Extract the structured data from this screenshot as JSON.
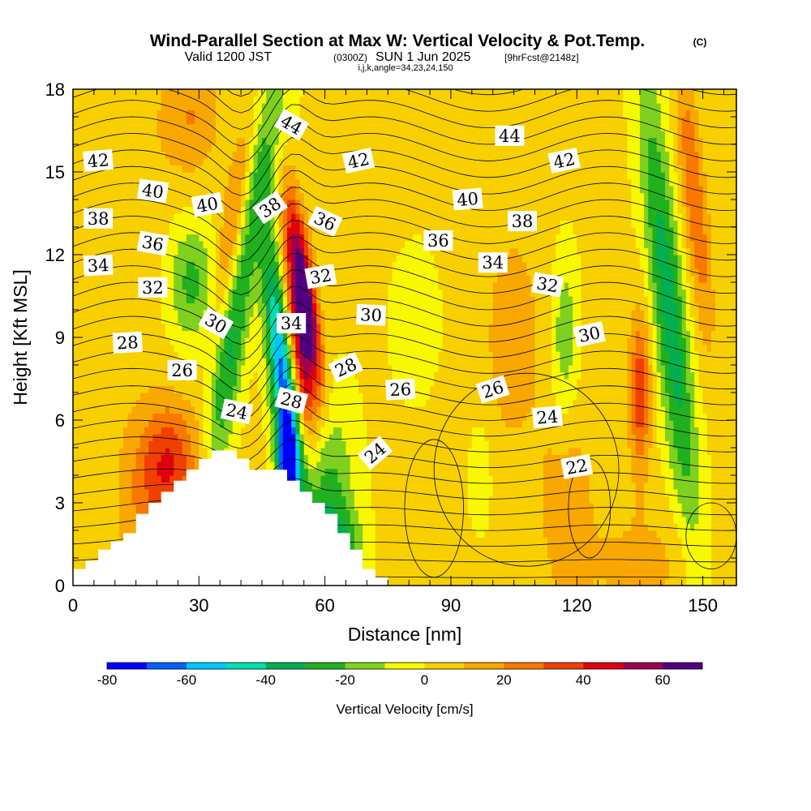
{
  "header": {
    "title": "Wind-Parallel Section at Max W: Vertical Velocity & Pot.Temp.",
    "copyright": "(C)",
    "valid_prefix": "Valid 1200 JST",
    "valid_utc": "(0300Z)",
    "valid_date": "SUN 1 Jun 2025",
    "forecast": "[9hrFcst@2148z]",
    "indices": "i,j,k,angle=34,23,24,150"
  },
  "chart_data": {
    "type": "contour",
    "xlabel": "Distance [nm]",
    "ylabel": "Height [Kft MSL]",
    "xlim": [
      0,
      158
    ],
    "ylim": [
      0,
      18
    ],
    "xticks": [
      0,
      30,
      60,
      90,
      120,
      150
    ],
    "yticks": [
      0,
      3,
      6,
      9,
      12,
      15,
      18
    ],
    "colorbar": {
      "title": "Vertical Velocity [cm/s]",
      "levels": [
        -80,
        -70,
        -60,
        -50,
        -40,
        -30,
        -20,
        -10,
        0,
        10,
        20,
        30,
        40,
        50,
        60,
        70
      ],
      "tick_values": [
        -80,
        -60,
        -40,
        -20,
        0,
        20,
        40,
        60
      ],
      "colors": [
        "#0000ff",
        "#0060ff",
        "#00c8ff",
        "#00e0b0",
        "#00b050",
        "#20b020",
        "#80d020",
        "#f8f800",
        "#f8d000",
        "#f8a800",
        "#f87800",
        "#f04000",
        "#e00010",
        "#a00050",
        "#500080"
      ]
    },
    "terrain_profile": [
      {
        "x": 0,
        "h": 0.6
      },
      {
        "x": 3,
        "h": 0.6
      },
      {
        "x": 3,
        "h": 0.9
      },
      {
        "x": 6,
        "h": 0.9
      },
      {
        "x": 6,
        "h": 1.3
      },
      {
        "x": 9,
        "h": 1.3
      },
      {
        "x": 9,
        "h": 1.6
      },
      {
        "x": 12,
        "h": 1.6
      },
      {
        "x": 12,
        "h": 1.9
      },
      {
        "x": 15,
        "h": 1.9
      },
      {
        "x": 15,
        "h": 2.6
      },
      {
        "x": 18,
        "h": 2.6
      },
      {
        "x": 18,
        "h": 3.0
      },
      {
        "x": 21,
        "h": 3.0
      },
      {
        "x": 21,
        "h": 3.4
      },
      {
        "x": 24,
        "h": 3.4
      },
      {
        "x": 24,
        "h": 3.8
      },
      {
        "x": 27,
        "h": 3.8
      },
      {
        "x": 27,
        "h": 4.2
      },
      {
        "x": 30,
        "h": 4.2
      },
      {
        "x": 30,
        "h": 4.6
      },
      {
        "x": 33,
        "h": 4.6
      },
      {
        "x": 33,
        "h": 4.9
      },
      {
        "x": 39,
        "h": 4.9
      },
      {
        "x": 39,
        "h": 4.6
      },
      {
        "x": 42,
        "h": 4.6
      },
      {
        "x": 42,
        "h": 4.2
      },
      {
        "x": 51,
        "h": 4.2
      },
      {
        "x": 51,
        "h": 3.8
      },
      {
        "x": 54,
        "h": 3.8
      },
      {
        "x": 54,
        "h": 3.4
      },
      {
        "x": 57,
        "h": 3.4
      },
      {
        "x": 57,
        "h": 3.0
      },
      {
        "x": 60,
        "h": 3.0
      },
      {
        "x": 60,
        "h": 2.6
      },
      {
        "x": 63,
        "h": 2.6
      },
      {
        "x": 63,
        "h": 1.9
      },
      {
        "x": 66,
        "h": 1.9
      },
      {
        "x": 66,
        "h": 1.3
      },
      {
        "x": 69,
        "h": 1.3
      },
      {
        "x": 69,
        "h": 0.6
      },
      {
        "x": 72,
        "h": 0.6
      },
      {
        "x": 72,
        "h": 0.3
      },
      {
        "x": 75,
        "h": 0.3
      },
      {
        "x": 75,
        "h": 0
      }
    ],
    "w_features": [
      {
        "x": 55,
        "h": 10.5,
        "sx": 2.0,
        "sy": 2.5,
        "amp": 75,
        "tilt": -0.3
      },
      {
        "x": 54,
        "h": 8.0,
        "sx": 1.8,
        "sy": 2.5,
        "amp": 40,
        "tilt": -0.3
      },
      {
        "x": 50,
        "h": 7.5,
        "sx": 2.2,
        "sy": 3.5,
        "amp": -65,
        "tilt": -0.2
      },
      {
        "x": 51,
        "h": 4.2,
        "sx": 1.5,
        "sy": 1.2,
        "amp": -70,
        "tilt": 0
      },
      {
        "x": 37,
        "h": 8.0,
        "sx": 2.5,
        "sy": 3.0,
        "amp": -30,
        "tilt": 0.3
      },
      {
        "x": 28,
        "h": 11.0,
        "sx": 4.0,
        "sy": 1.5,
        "amp": -25,
        "tilt": 0
      },
      {
        "x": 45,
        "h": 15.0,
        "sx": 3.0,
        "sy": 3.5,
        "amp": -22,
        "tilt": 0.4
      },
      {
        "x": 60,
        "h": 3.0,
        "sx": 4.5,
        "sy": 2.5,
        "amp": -32,
        "tilt": 0
      },
      {
        "x": 64,
        "h": 1.2,
        "sx": 3.5,
        "sy": 1.0,
        "amp": -25,
        "tilt": 0
      },
      {
        "x": 38,
        "h": 13.0,
        "sx": 2.0,
        "sy": 2.5,
        "amp": 25,
        "tilt": 0.3
      },
      {
        "x": 23,
        "h": 4.5,
        "sx": 5.0,
        "sy": 1.5,
        "amp": 35,
        "tilt": 0
      },
      {
        "x": 28,
        "h": 17.0,
        "sx": 5.0,
        "sy": 1.5,
        "amp": 18,
        "tilt": 0
      },
      {
        "x": 17,
        "h": 2.5,
        "sx": 5.0,
        "sy": 2.0,
        "amp": 14,
        "tilt": 0
      },
      {
        "x": 142,
        "h": 10.0,
        "sx": 2.8,
        "sy": 6.0,
        "amp": -38,
        "tilt": -0.22
      },
      {
        "x": 148,
        "h": 14.0,
        "sx": 2.0,
        "sy": 3.5,
        "amp": 28,
        "tilt": -0.2
      },
      {
        "x": 135,
        "h": 7.0,
        "sx": 1.8,
        "sy": 2.0,
        "amp": 35,
        "tilt": 0
      },
      {
        "x": 117,
        "h": 9.0,
        "sx": 2.5,
        "sy": 2.5,
        "amp": -22,
        "tilt": 0
      },
      {
        "x": 97,
        "h": 4.0,
        "sx": 2.0,
        "sy": 1.5,
        "amp": -16,
        "tilt": 0
      },
      {
        "x": 118,
        "h": 3.0,
        "sx": 4.0,
        "sy": 2.5,
        "amp": 14,
        "tilt": 0
      },
      {
        "x": 104,
        "h": 9.0,
        "sx": 10.0,
        "sy": 5.0,
        "amp": 10,
        "tilt": 0
      },
      {
        "x": 85,
        "h": 9.5,
        "sx": 8.0,
        "sy": 3.0,
        "amp": -5,
        "tilt": 0
      },
      {
        "x": 10,
        "h": 13.0,
        "sx": 8.0,
        "sy": 5.0,
        "amp": 8,
        "tilt": 0
      },
      {
        "x": 135,
        "h": 0.8,
        "sx": 10.0,
        "sy": 1.5,
        "amp": 11,
        "tilt": 0
      }
    ],
    "theta_labels": [
      {
        "text": "42",
        "x": 6,
        "h": 15.4,
        "angle": -5
      },
      {
        "text": "40",
        "x": 19,
        "h": 14.3,
        "angle": 8
      },
      {
        "text": "40",
        "x": 32,
        "h": 13.8,
        "angle": -10
      },
      {
        "text": "38",
        "x": 6,
        "h": 13.3,
        "angle": 0
      },
      {
        "text": "38",
        "x": 47,
        "h": 13.7,
        "angle": -35
      },
      {
        "text": "44",
        "x": 52,
        "h": 16.7,
        "angle": 30
      },
      {
        "text": "42",
        "x": 68,
        "h": 15.4,
        "angle": -12
      },
      {
        "text": "36",
        "x": 19,
        "h": 12.4,
        "angle": 10
      },
      {
        "text": "36",
        "x": 60,
        "h": 13.2,
        "angle": 25
      },
      {
        "text": "34",
        "x": 6,
        "h": 11.6,
        "angle": -3
      },
      {
        "text": "32",
        "x": 19,
        "h": 10.8,
        "angle": 0
      },
      {
        "text": "32",
        "x": 59,
        "h": 11.2,
        "angle": -10
      },
      {
        "text": "34",
        "x": 52,
        "h": 9.5,
        "angle": 0
      },
      {
        "text": "30",
        "x": 34,
        "h": 9.5,
        "angle": 30
      },
      {
        "text": "30",
        "x": 71,
        "h": 9.8,
        "angle": 3
      },
      {
        "text": "28",
        "x": 13,
        "h": 8.8,
        "angle": -3
      },
      {
        "text": "28",
        "x": 65,
        "h": 7.9,
        "angle": -25
      },
      {
        "text": "28",
        "x": 52,
        "h": 6.7,
        "angle": 15
      },
      {
        "text": "26",
        "x": 26,
        "h": 7.8,
        "angle": 0
      },
      {
        "text": "26",
        "x": 78,
        "h": 7.1,
        "angle": -3
      },
      {
        "text": "26",
        "x": 100,
        "h": 7.1,
        "angle": -18
      },
      {
        "text": "24",
        "x": 39,
        "h": 6.3,
        "angle": 12
      },
      {
        "text": "24",
        "x": 72,
        "h": 4.8,
        "angle": -40
      },
      {
        "text": "24",
        "x": 113,
        "h": 6.1,
        "angle": -5
      },
      {
        "text": "22",
        "x": 120,
        "h": 4.3,
        "angle": -10
      },
      {
        "text": "44",
        "x": 104,
        "h": 16.3,
        "angle": 0
      },
      {
        "text": "42",
        "x": 117,
        "h": 15.4,
        "angle": -12
      },
      {
        "text": "40",
        "x": 94,
        "h": 14.0,
        "angle": -5
      },
      {
        "text": "38",
        "x": 107,
        "h": 13.2,
        "angle": 0
      },
      {
        "text": "36",
        "x": 87,
        "h": 12.5,
        "angle": 0
      },
      {
        "text": "34",
        "x": 100,
        "h": 11.7,
        "angle": 0
      },
      {
        "text": "32",
        "x": 113,
        "h": 10.9,
        "angle": 10
      },
      {
        "text": "30",
        "x": 123,
        "h": 9.1,
        "angle": -12
      }
    ]
  }
}
